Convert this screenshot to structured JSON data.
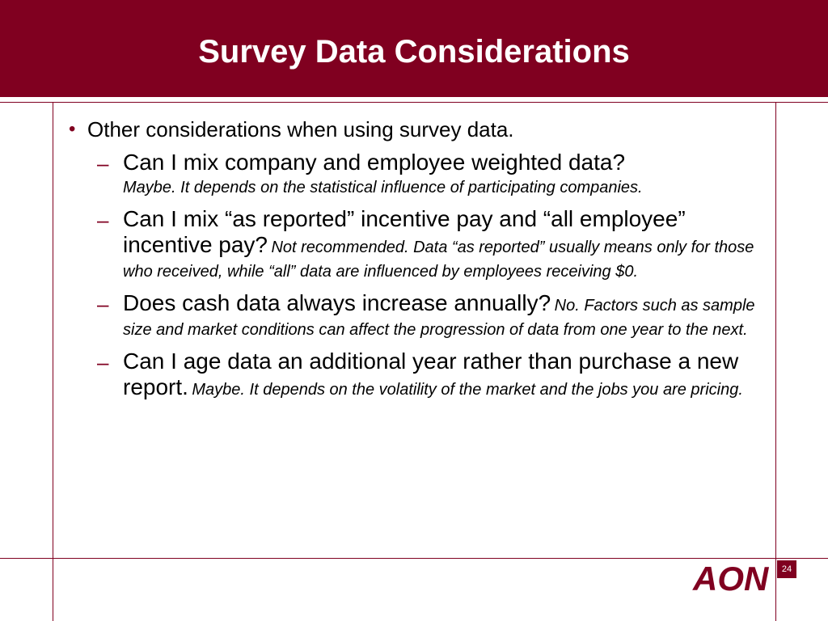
{
  "slide": {
    "title": "Survey Data Considerations",
    "bullet": "Other considerations when using survey data.",
    "items": [
      {
        "question": "Can I mix company and employee weighted data?",
        "answer": "Maybe.  It depends on the statistical influence of participating companies."
      },
      {
        "question": "Can I mix “as reported” incentive pay and “all employee” incentive pay?",
        "answer": "Not recommended. Data “as reported” usually means only for those who received, while “all” data are influenced by employees receiving $0."
      },
      {
        "question": "Does cash data always increase annually?",
        "answer": "No. Factors such as sample size and market conditions can affect the progression of data from one year to the next."
      },
      {
        "question": "Can I age data an additional year rather than purchase a new report.",
        "answer": "Maybe.  It depends on the volatility of the market and the jobs you are pricing."
      }
    ],
    "bullet_marker": "•",
    "dash_marker": "–",
    "page_number": "24",
    "logo_text": "AON"
  },
  "colors": {
    "brand": "#800020",
    "text": "#000000",
    "background": "#ffffff"
  }
}
